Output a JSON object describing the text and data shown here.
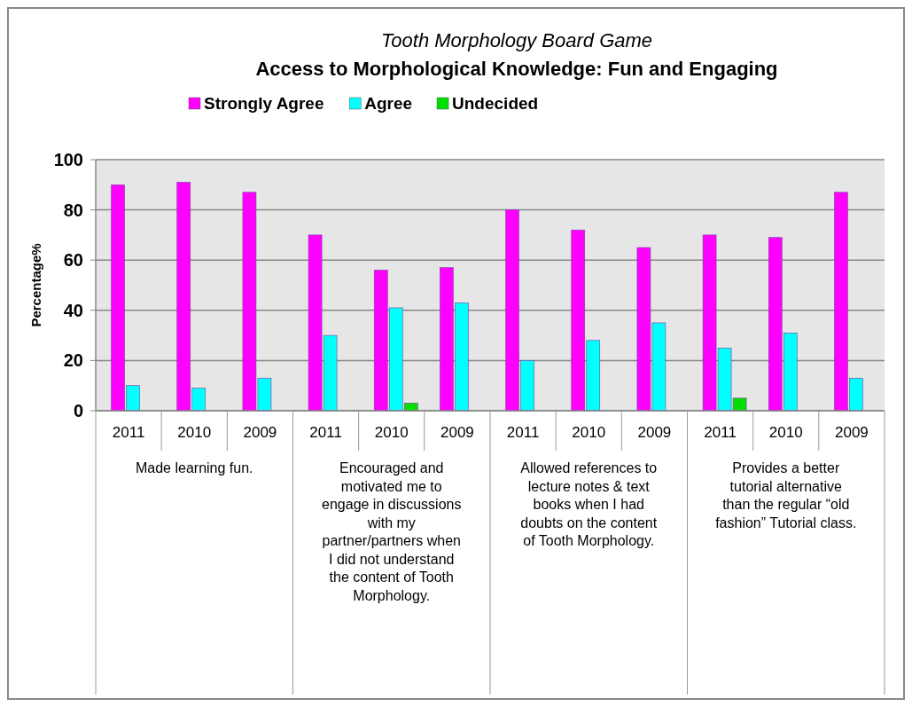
{
  "chart_data": {
    "type": "bar",
    "title": "Tooth Morphology Board Game",
    "subtitle": "Access to Morphological Knowledge: Fun and Engaging",
    "ylabel": "Percentage%",
    "categories": [
      "2011",
      "2010",
      "2009",
      "2011",
      "2010",
      "2009",
      "2011",
      "2010",
      "2009",
      "2011",
      "2010",
      "2009"
    ],
    "series": [
      {
        "name": "Strongly Agree",
        "color": "#ff00ff",
        "values": [
          90,
          91,
          87,
          70,
          56,
          57,
          80,
          72,
          65,
          70,
          69,
          87
        ]
      },
      {
        "name": "Agree",
        "color": "#00ffff",
        "values": [
          10,
          9,
          13,
          30,
          41,
          43,
          20,
          28,
          35,
          25,
          31,
          13
        ]
      },
      {
        "name": "Undecided",
        "color": "#00e000",
        "values": [
          null,
          null,
          null,
          null,
          3,
          null,
          null,
          null,
          null,
          5,
          null,
          null
        ]
      }
    ],
    "annotations": [
      "Made learning fun.",
      "Encouraged and motivated me to engage in discussions with my partner/partners when I did not understand the content of Tooth Morphology.",
      "Allowed references to lecture notes & text books when I had doubts on the content of Tooth Morphology.",
      "Provides a better tutorial alternative than the regular “old fashion” Tutorial class."
    ],
    "ylim": [
      0,
      100
    ],
    "yticks": [
      0,
      20,
      40,
      60,
      80,
      100
    ],
    "grid": "y",
    "legend": "top"
  }
}
